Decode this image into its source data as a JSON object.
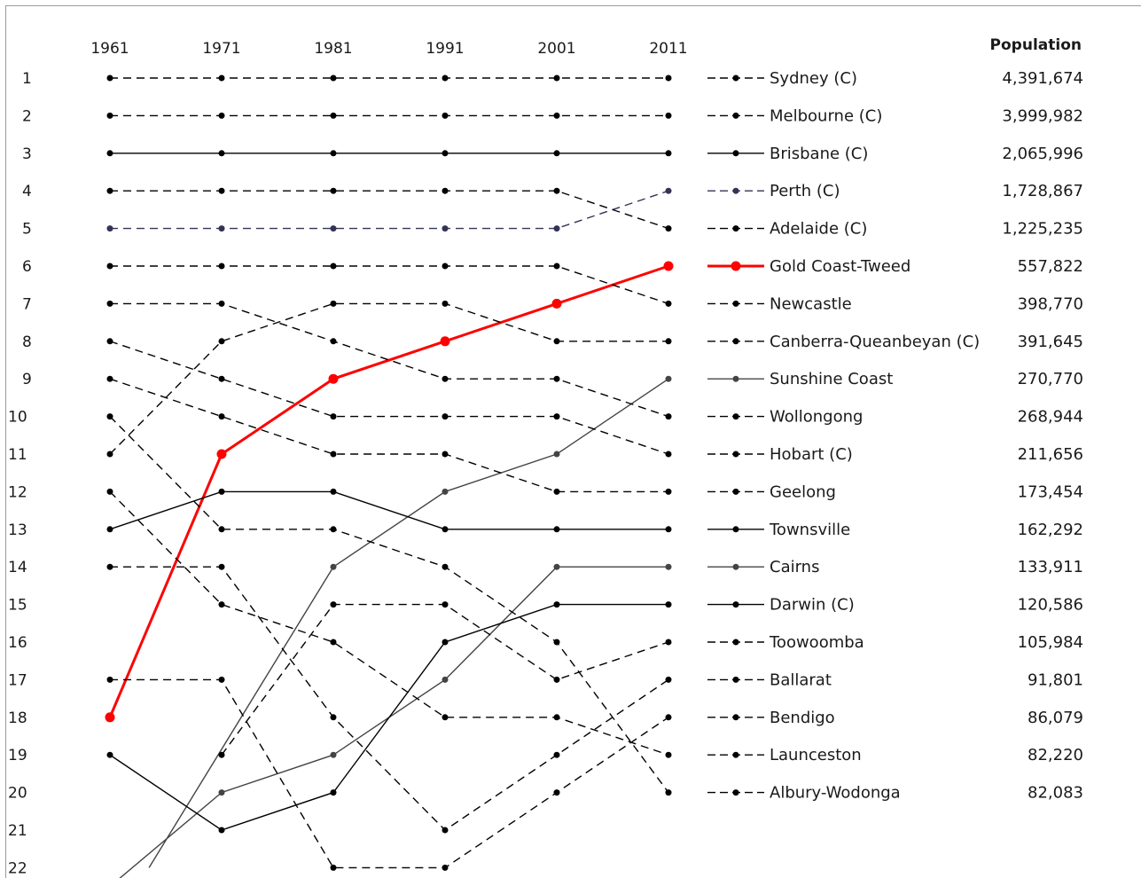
{
  "chart_data": {
    "type": "line",
    "title": "",
    "x": [
      "1961",
      "1971",
      "1981",
      "1991",
      "2001",
      "2011"
    ],
    "y_reversed": true,
    "ylim": [
      1,
      22
    ],
    "y_ticks": [
      "1",
      "2",
      "3",
      "4",
      "5",
      "6",
      "7",
      "8",
      "9",
      "10",
      "11",
      "12",
      "13",
      "14",
      "15",
      "16",
      "17",
      "18",
      "19",
      "20",
      "21",
      "22"
    ],
    "population_header": "Population",
    "legend_position": "right",
    "series": [
      {
        "name": "Sydney (C)",
        "population": "4,391,674",
        "style": "dashed",
        "color": "#000000",
        "ranks": [
          1,
          1,
          1,
          1,
          1,
          1
        ]
      },
      {
        "name": "Melbourne (C)",
        "population": "3,999,982",
        "style": "dashed",
        "color": "#000000",
        "ranks": [
          2,
          2,
          2,
          2,
          2,
          2
        ]
      },
      {
        "name": "Brisbane (C)",
        "population": "2,065,996",
        "style": "solid",
        "color": "#000000",
        "ranks": [
          3,
          3,
          3,
          3,
          3,
          3
        ]
      },
      {
        "name": "Perth (C)",
        "population": "1,728,867",
        "style": "dashed",
        "color": "#333355",
        "ranks": [
          5,
          5,
          5,
          5,
          5,
          4
        ]
      },
      {
        "name": "Adelaide (C)",
        "population": "1,225,235",
        "style": "dashed",
        "color": "#000000",
        "ranks": [
          4,
          4,
          4,
          4,
          4,
          5
        ]
      },
      {
        "name": "Gold Coast-Tweed",
        "population": "557,822",
        "style": "solid",
        "color": "#ff0000",
        "ranks": [
          18,
          11,
          9,
          8,
          7,
          6
        ]
      },
      {
        "name": "Newcastle",
        "population": "398,770",
        "style": "dashed",
        "color": "#000000",
        "ranks": [
          6,
          6,
          6,
          6,
          6,
          7
        ]
      },
      {
        "name": "Canberra-Queanbeyan (C)",
        "population": "391,645",
        "style": "dashed",
        "color": "#000000",
        "ranks": [
          11,
          8,
          7,
          7,
          8,
          8
        ]
      },
      {
        "name": "Sunshine Coast",
        "population": "270,770",
        "style": "solid",
        "color": "#444444",
        "ranks": [
          null,
          null,
          14,
          12,
          11,
          9
        ]
      },
      {
        "name": "Wollongong",
        "population": "268,944",
        "style": "dashed",
        "color": "#000000",
        "ranks": [
          7,
          7,
          8,
          9,
          9,
          10
        ]
      },
      {
        "name": "Hobart (C)",
        "population": "211,656",
        "style": "dashed",
        "color": "#000000",
        "ranks": [
          8,
          9,
          10,
          10,
          10,
          11
        ]
      },
      {
        "name": "Geelong",
        "population": "173,454",
        "style": "dashed",
        "color": "#000000",
        "ranks": [
          9,
          10,
          11,
          11,
          12,
          12
        ]
      },
      {
        "name": "Townsville",
        "population": "162,292",
        "style": "solid",
        "color": "#000000",
        "ranks": [
          13,
          12,
          12,
          13,
          13,
          13
        ]
      },
      {
        "name": "Cairns",
        "population": "133,911",
        "style": "solid",
        "color": "#444444",
        "ranks": [
          null,
          20,
          19,
          17,
          14,
          14
        ]
      },
      {
        "name": "Darwin (C)",
        "population": "120,586",
        "style": "solid",
        "color": "#000000",
        "ranks": [
          19,
          21,
          20,
          16,
          15,
          15
        ]
      },
      {
        "name": "Toowoomba",
        "population": "105,984",
        "style": "dashed",
        "color": "#000000",
        "ranks": [
          null,
          19,
          15,
          15,
          17,
          16
        ]
      },
      {
        "name": "Ballarat",
        "population": "91,801",
        "style": "dashed",
        "color": "#000000",
        "ranks": [
          14,
          14,
          18,
          21,
          19,
          17
        ]
      },
      {
        "name": "Bendigo",
        "population": "86,079",
        "style": "dashed",
        "color": "#000000",
        "ranks": [
          17,
          17,
          22,
          22,
          20,
          18
        ]
      },
      {
        "name": "Launceston",
        "population": "82,220",
        "style": "dashed",
        "color": "#000000",
        "ranks": [
          12,
          15,
          16,
          18,
          18,
          19
        ]
      },
      {
        "name": "Albury-Wodonga",
        "population": "82,083",
        "style": "dashed",
        "color": "#000000",
        "ranks": [
          10,
          13,
          13,
          14,
          16,
          20
        ]
      }
    ],
    "extra_lines": [
      {
        "style": "solid",
        "color": "#444444",
        "ranks": [
          null,
          null,
          null,
          null,
          null,
          null
        ],
        "from": [
          0.35,
          22
        ],
        "to": [
          1,
          20
        ]
      }
    ]
  }
}
